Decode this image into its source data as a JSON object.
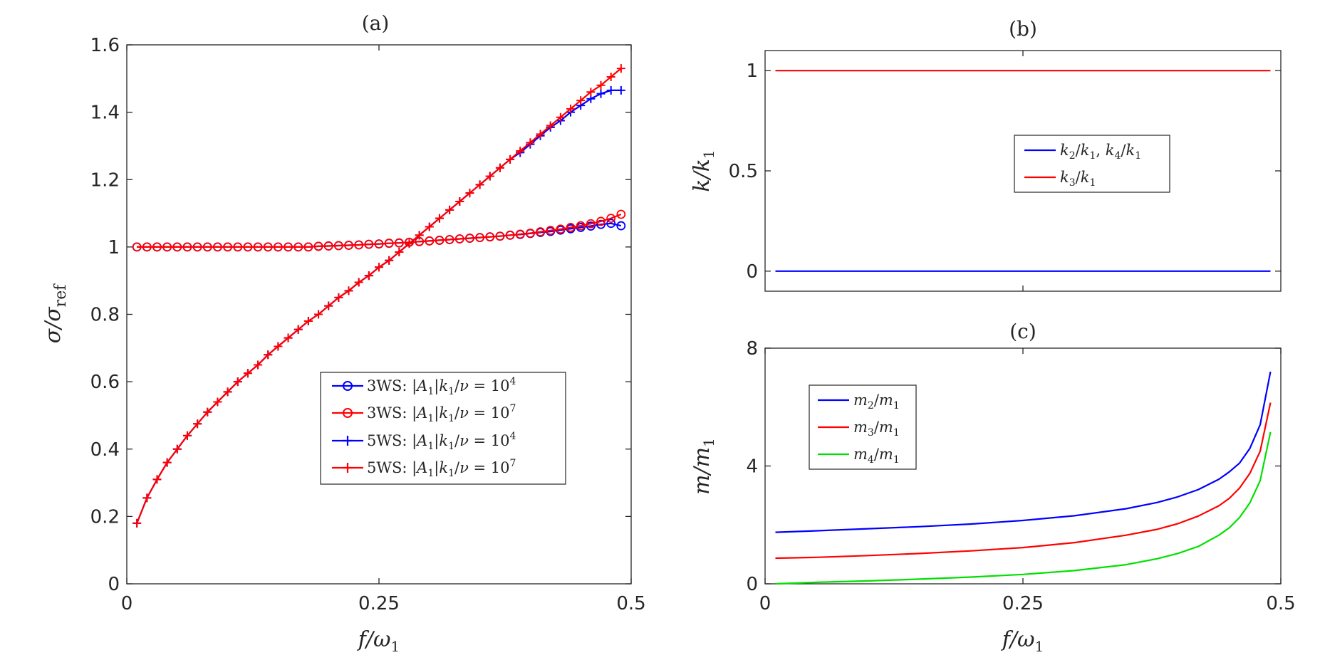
{
  "chart_data": [
    {
      "panel": "a",
      "type": "line",
      "title": "(a)",
      "xlabel": "f/ω₁",
      "ylabel": "σ/σ_ref",
      "xlim": [
        0,
        0.5
      ],
      "ylim": [
        0,
        1.6
      ],
      "xticks": [
        {
          "v": 0,
          "label": "0"
        },
        {
          "v": 0.25,
          "label": "0.25"
        },
        {
          "v": 0.5,
          "label": "0.5"
        }
      ],
      "yticks": [
        {
          "v": 0,
          "label": "0"
        },
        {
          "v": 0.2,
          "label": "0.2"
        },
        {
          "v": 0.4,
          "label": "0.4"
        },
        {
          "v": 0.6,
          "label": "0.6"
        },
        {
          "v": 0.8,
          "label": "0.8"
        },
        {
          "v": 1,
          "label": "1"
        },
        {
          "v": 1.2,
          "label": "1.2"
        },
        {
          "v": 1.4,
          "label": "1.4"
        },
        {
          "v": 1.6,
          "label": "1.6"
        }
      ],
      "grid": false,
      "legend_position": "lower-right",
      "x": [
        0.01,
        0.02,
        0.03,
        0.04,
        0.05,
        0.06,
        0.07,
        0.08,
        0.09,
        0.1,
        0.11,
        0.12,
        0.13,
        0.14,
        0.15,
        0.16,
        0.17,
        0.18,
        0.19,
        0.2,
        0.21,
        0.22,
        0.23,
        0.24,
        0.25,
        0.26,
        0.27,
        0.28,
        0.29,
        0.3,
        0.31,
        0.32,
        0.33,
        0.34,
        0.35,
        0.36,
        0.37,
        0.38,
        0.39,
        0.4,
        0.41,
        0.42,
        0.43,
        0.44,
        0.45,
        0.46,
        0.47,
        0.48,
        0.49
      ],
      "series": [
        {
          "name": "3WS: |A₁|k₁/ν = 10⁴",
          "color": "#0000ff",
          "marker": "circle",
          "values": [
            1.0,
            1.0,
            1.0,
            1.0,
            1.0,
            1.0,
            1.0,
            1.0,
            1.0,
            1.0,
            1.0,
            1.0,
            1.0,
            1.0,
            1.0,
            1.0,
            1.0,
            1.0,
            1.002,
            1.003,
            1.004,
            1.005,
            1.006,
            1.008,
            1.009,
            1.011,
            1.012,
            1.014,
            1.016,
            1.018,
            1.02,
            1.022,
            1.024,
            1.026,
            1.028,
            1.03,
            1.032,
            1.035,
            1.037,
            1.04,
            1.043,
            1.046,
            1.05,
            1.054,
            1.058,
            1.062,
            1.067,
            1.07,
            1.063
          ]
        },
        {
          "name": "3WS: |A₁|k₁/ν = 10⁷",
          "color": "#ff0000",
          "marker": "circle",
          "values": [
            1.0,
            1.0,
            1.0,
            1.0,
            1.0,
            1.0,
            1.0,
            1.0,
            1.0,
            1.0,
            1.0,
            1.0,
            1.0,
            1.0,
            1.0,
            1.0,
            1.0,
            1.0,
            1.002,
            1.003,
            1.004,
            1.005,
            1.006,
            1.008,
            1.009,
            1.011,
            1.012,
            1.014,
            1.016,
            1.018,
            1.02,
            1.022,
            1.024,
            1.026,
            1.028,
            1.03,
            1.032,
            1.035,
            1.038,
            1.041,
            1.045,
            1.049,
            1.053,
            1.058,
            1.063,
            1.069,
            1.076,
            1.085,
            1.097
          ]
        },
        {
          "name": "5WS: |A₁|k₁/ν = 10⁴",
          "color": "#0000ff",
          "marker": "plus",
          "values": [
            0.18,
            0.255,
            0.31,
            0.36,
            0.4,
            0.44,
            0.475,
            0.51,
            0.54,
            0.57,
            0.6,
            0.625,
            0.65,
            0.68,
            0.705,
            0.73,
            0.755,
            0.78,
            0.8,
            0.825,
            0.85,
            0.87,
            0.895,
            0.915,
            0.94,
            0.96,
            0.985,
            1.01,
            1.035,
            1.06,
            1.085,
            1.11,
            1.135,
            1.16,
            1.185,
            1.21,
            1.235,
            1.26,
            1.28,
            1.305,
            1.33,
            1.355,
            1.375,
            1.4,
            1.42,
            1.44,
            1.455,
            1.465,
            1.465
          ]
        },
        {
          "name": "5WS: |A₁|k₁/ν = 10⁷",
          "color": "#ff0000",
          "marker": "plus",
          "values": [
            0.18,
            0.255,
            0.31,
            0.36,
            0.4,
            0.44,
            0.475,
            0.51,
            0.54,
            0.57,
            0.6,
            0.625,
            0.65,
            0.68,
            0.705,
            0.73,
            0.755,
            0.78,
            0.8,
            0.825,
            0.85,
            0.87,
            0.895,
            0.915,
            0.94,
            0.96,
            0.985,
            1.01,
            1.035,
            1.06,
            1.085,
            1.11,
            1.135,
            1.16,
            1.185,
            1.21,
            1.235,
            1.26,
            1.285,
            1.31,
            1.335,
            1.36,
            1.385,
            1.41,
            1.435,
            1.46,
            1.48,
            1.505,
            1.53
          ]
        }
      ]
    },
    {
      "panel": "b",
      "type": "line",
      "title": "(b)",
      "xlabel": "",
      "ylabel": "k/k₁",
      "xlim": [
        0,
        0.5
      ],
      "ylim": [
        -0.1,
        1.1
      ],
      "xticks": [
        {
          "v": 0.25,
          "label": ""
        }
      ],
      "yticks": [
        {
          "v": 0,
          "label": "0"
        },
        {
          "v": 0.5,
          "label": "0.5"
        },
        {
          "v": 1,
          "label": "1"
        }
      ],
      "grid": false,
      "legend_position": "center-right",
      "x": [
        0.01,
        0.49
      ],
      "series": [
        {
          "name": "k₂/k₁, k₄/k₁",
          "color": "#0000ff",
          "values": [
            0,
            0
          ]
        },
        {
          "name": "k₃/k₁",
          "color": "#ff0000",
          "values": [
            1,
            1
          ]
        }
      ]
    },
    {
      "panel": "c",
      "type": "line",
      "title": "(c)",
      "xlabel": "f/ω₁",
      "ylabel": "m/m₁",
      "xlim": [
        0,
        0.5
      ],
      "ylim": [
        0,
        8
      ],
      "xticks": [
        {
          "v": 0,
          "label": "0"
        },
        {
          "v": 0.25,
          "label": "0.25"
        },
        {
          "v": 0.5,
          "label": "0.5"
        }
      ],
      "yticks": [
        {
          "v": 0,
          "label": "0"
        },
        {
          "v": 4,
          "label": "4"
        },
        {
          "v": 8,
          "label": "8"
        }
      ],
      "grid": false,
      "legend_position": "upper-left",
      "x": [
        0.01,
        0.05,
        0.1,
        0.15,
        0.2,
        0.25,
        0.3,
        0.35,
        0.38,
        0.4,
        0.42,
        0.44,
        0.45,
        0.46,
        0.47,
        0.48,
        0.49
      ],
      "series": [
        {
          "name": "m₂/m₁",
          "color": "#0000ff",
          "values": [
            1.75,
            1.8,
            1.87,
            1.94,
            2.03,
            2.15,
            2.31,
            2.55,
            2.76,
            2.95,
            3.2,
            3.55,
            3.8,
            4.1,
            4.6,
            5.4,
            7.2
          ]
        },
        {
          "name": "m₃/m₁",
          "color": "#ff0000",
          "values": [
            0.87,
            0.9,
            0.96,
            1.03,
            1.12,
            1.23,
            1.4,
            1.65,
            1.85,
            2.04,
            2.3,
            2.65,
            2.9,
            3.25,
            3.75,
            4.5,
            6.15
          ]
        },
        {
          "name": "m₄/m₁",
          "color": "#00e000",
          "values": [
            0.0,
            0.05,
            0.1,
            0.16,
            0.23,
            0.32,
            0.45,
            0.65,
            0.85,
            1.03,
            1.27,
            1.65,
            1.9,
            2.25,
            2.75,
            3.5,
            5.15
          ]
        }
      ]
    }
  ]
}
